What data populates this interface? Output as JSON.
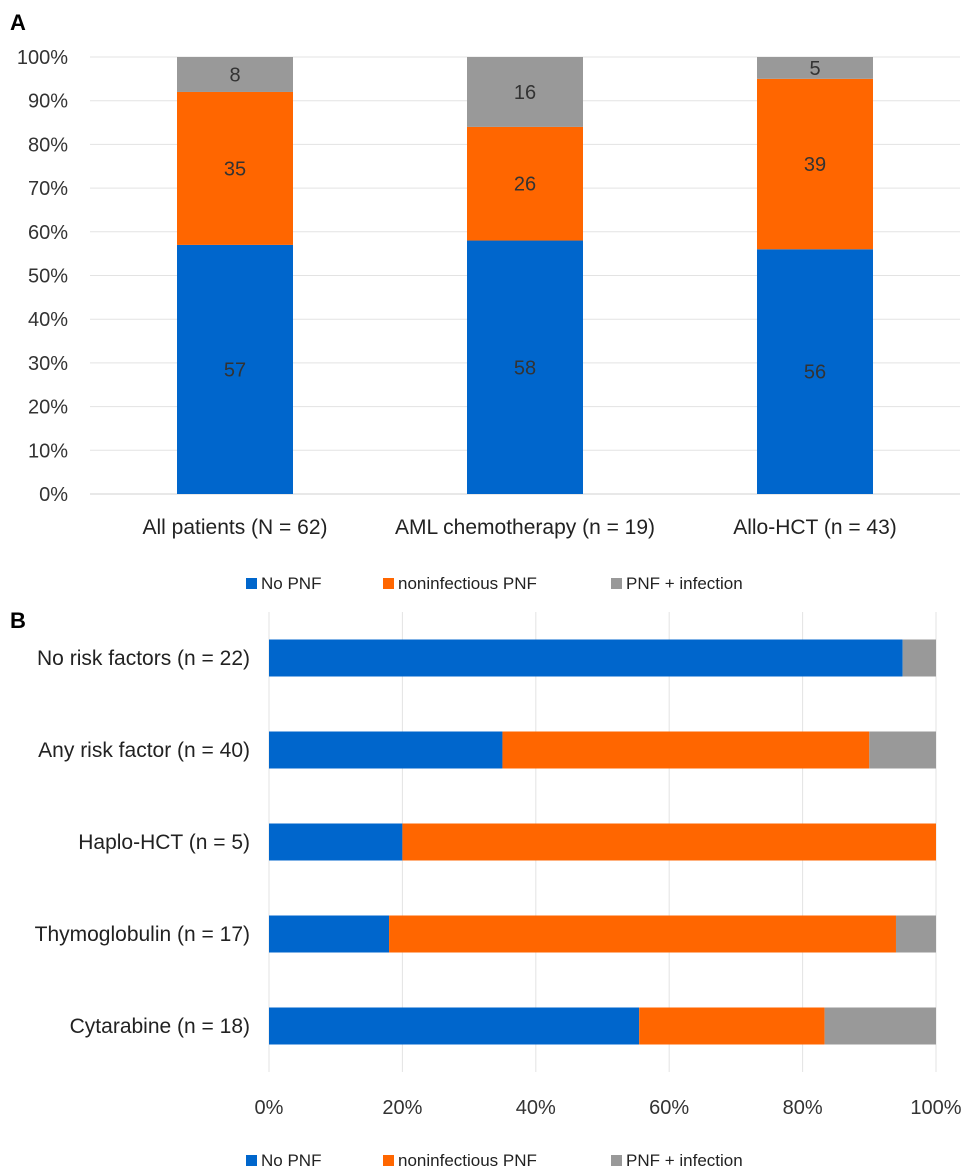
{
  "chart_data": [
    {
      "panel": "A",
      "type": "bar",
      "stacked": true,
      "orientation": "vertical",
      "categories": [
        "All patients (N = 62)",
        "AML chemotherapy (n = 19)",
        "Allo-HCT (n = 43)"
      ],
      "series": [
        {
          "name": "No PNF",
          "color": "#0066cc",
          "values": [
            57,
            58,
            56
          ]
        },
        {
          "name": "noninfectious PNF",
          "color": "#ff6600",
          "values": [
            35,
            26,
            39
          ]
        },
        {
          "name": "PNF + infection",
          "color": "#999999",
          "values": [
            8,
            16,
            5
          ]
        }
      ],
      "y_ticks": [
        "0%",
        "10%",
        "20%",
        "30%",
        "40%",
        "50%",
        "60%",
        "70%",
        "80%",
        "90%",
        "100%"
      ],
      "ylim": [
        0,
        100
      ],
      "grid": true,
      "legend_position": "bottom"
    },
    {
      "panel": "B",
      "type": "bar",
      "stacked": true,
      "orientation": "horizontal",
      "categories": [
        "No risk factors (n = 22)",
        "Any risk factor (n = 40)",
        "Haplo-HCT (n = 5)",
        "Thymoglobulin (n = 17)",
        "Cytarabine (n = 18)"
      ],
      "series": [
        {
          "name": "No PNF",
          "color": "#0066cc",
          "values": [
            95,
            35,
            20,
            18,
            55.5
          ]
        },
        {
          "name": "noninfectious PNF",
          "color": "#ff6600",
          "values": [
            0,
            55,
            80,
            76,
            27.8
          ]
        },
        {
          "name": "PNF + infection",
          "color": "#999999",
          "values": [
            5,
            10,
            0,
            6,
            16.7
          ]
        }
      ],
      "x_ticks": [
        "0%",
        "20%",
        "40%",
        "60%",
        "80%",
        "100%"
      ],
      "xlim": [
        0,
        100
      ],
      "grid": true,
      "legend_position": "bottom"
    }
  ]
}
